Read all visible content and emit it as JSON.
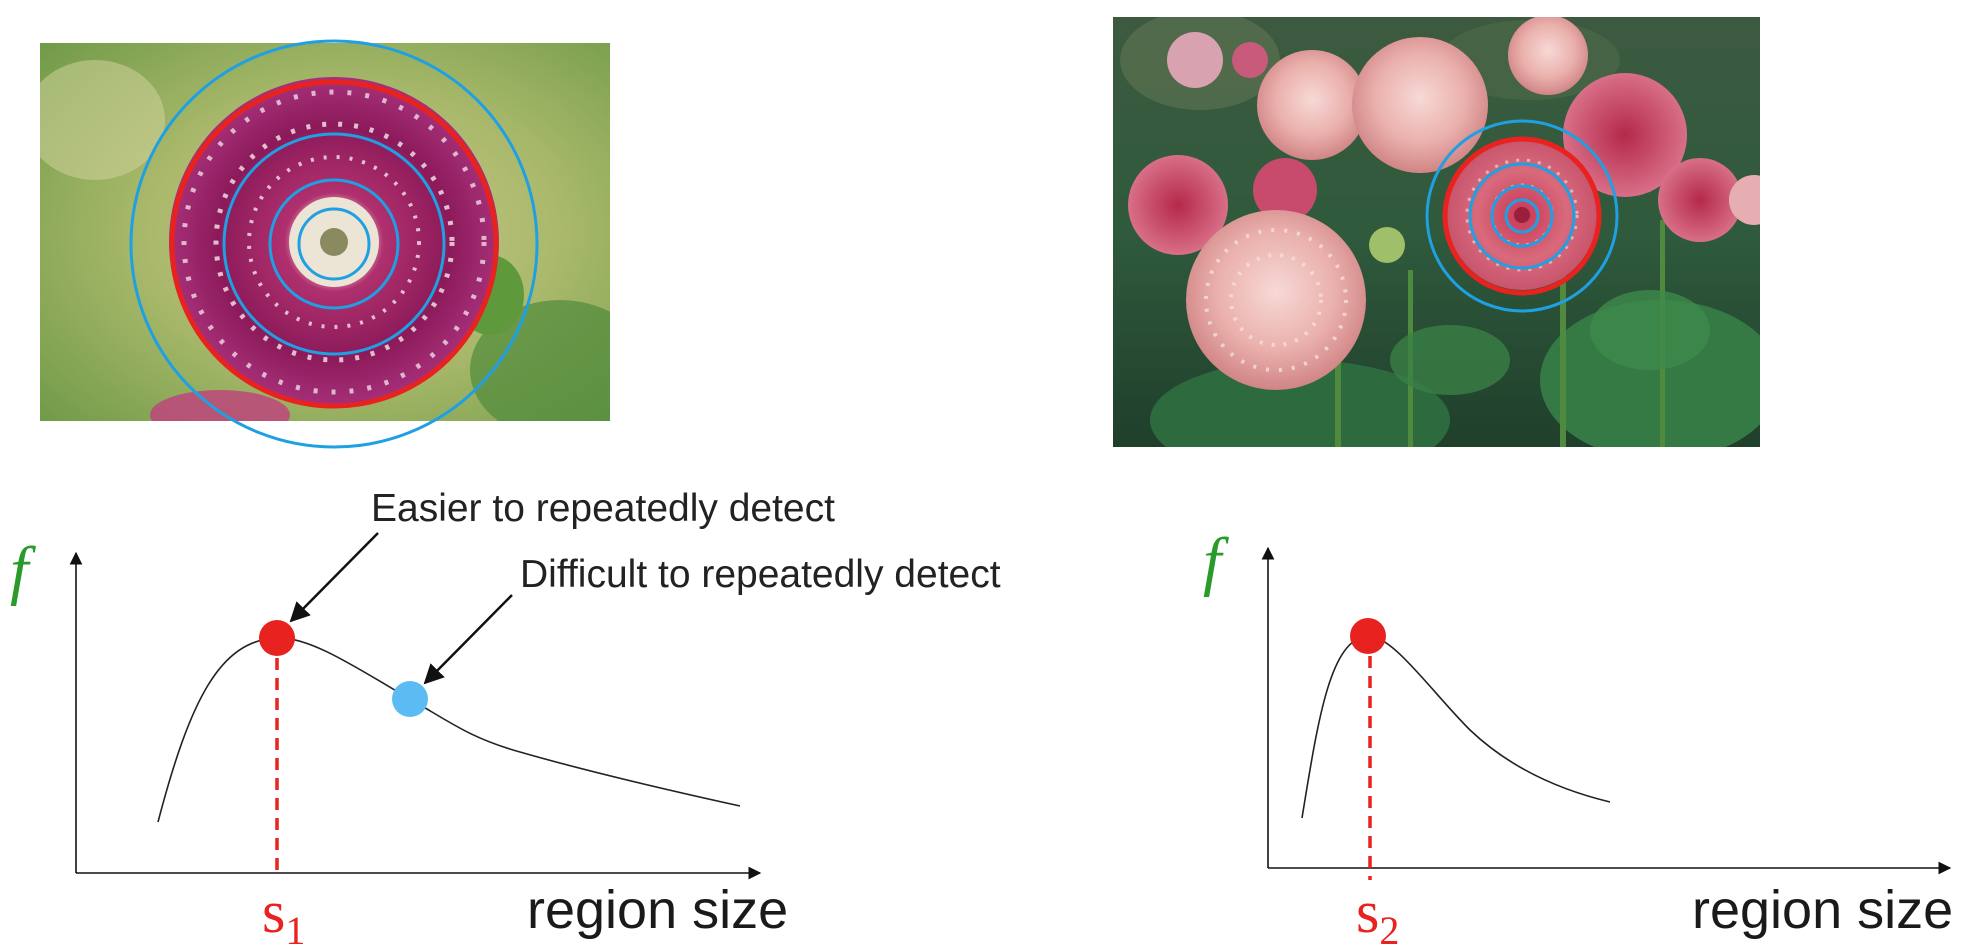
{
  "panels": [
    {
      "id": "left",
      "photo_icon": "single-dahlia-photo",
      "f_label": "f",
      "xlabel": "region size",
      "scale_label": {
        "base": "s",
        "sub": "1"
      },
      "annotations": [
        {
          "text": "Easier to repeatedly detect",
          "target": "peak"
        },
        {
          "text": "Difficult to repeatedly detect",
          "target": "blue-point"
        }
      ]
    },
    {
      "id": "right",
      "photo_icon": "dahlia-garden-photo",
      "f_label": "f",
      "xlabel": "region size",
      "scale_label": {
        "base": "s",
        "sub": "2"
      },
      "annotations": []
    }
  ],
  "colors": {
    "red": "#e8231f",
    "blue_circle": "#1fa0e3",
    "blue_point": "#5bbcf4",
    "green_f": "#2a9a2a",
    "curve": "#222222"
  }
}
